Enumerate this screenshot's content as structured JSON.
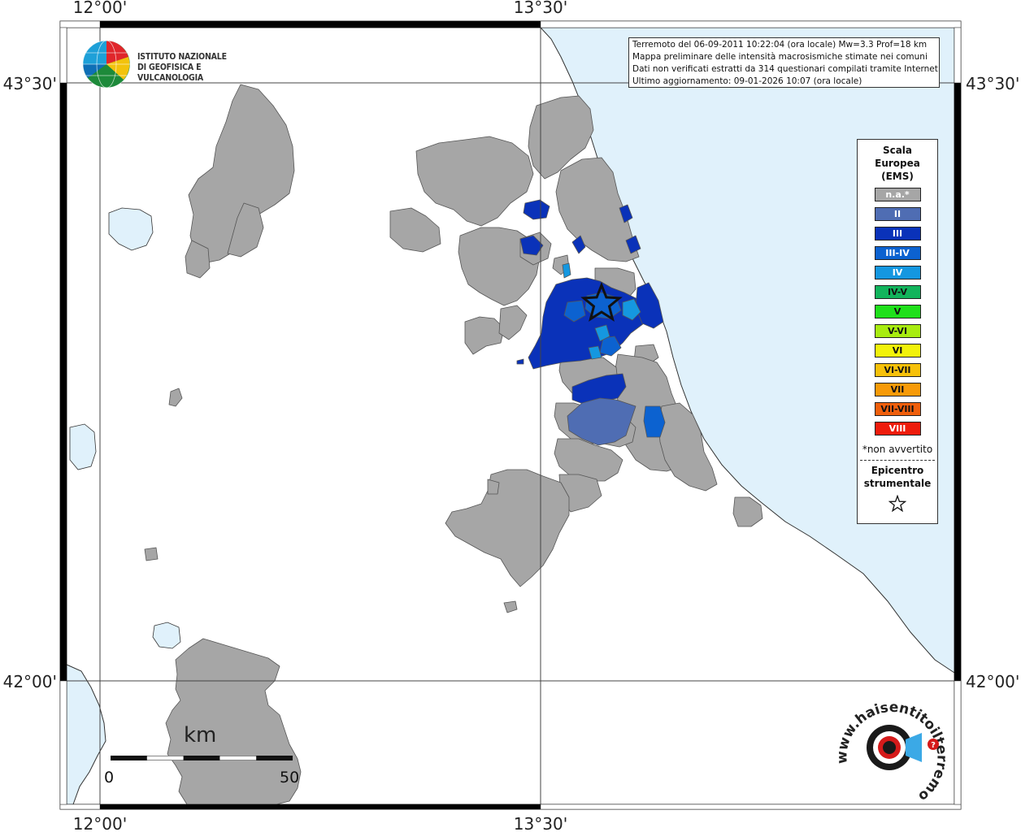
{
  "map": {
    "coord_labels": {
      "lon_left_top": "12°00'",
      "lon_right_top": "13°30'",
      "lon_left_bottom": "12°00'",
      "lon_right_bottom": "13°30'",
      "lat_upper_left": "43°30'",
      "lat_upper_right": "43°30'",
      "lat_lower_left": "42°00'",
      "lat_lower_right": "42°00'"
    },
    "colors": {
      "land": "#ffffff",
      "sea": "#e0f1fb",
      "not_available": "#a6a6a6",
      "epicenter_outline": "#111111"
    }
  },
  "logo": {
    "line1": "ISTITUTO NAZIONALE",
    "line2": "DI GEOFISICA E VULCANOLOGIA"
  },
  "info": {
    "line1": "Terremoto del 06-09-2011 10:22:04 (ora locale) Mw=3.3 Prof=18 km",
    "line2": "Mappa preliminare delle intensità macrosismiche stimate nei comuni",
    "line3": "Dati non verificati estratti da 314 questionari compilati tramite Internet.",
    "line4": "Ultimo aggiornamento: 09-01-2026 10:07 (ora locale)"
  },
  "legend": {
    "title_line1": "Scala",
    "title_line2": "Europea",
    "title_line3": "(EMS)",
    "items": [
      {
        "label": "n.a.*",
        "color": "#a6a6a6",
        "text_color": "#ffffff"
      },
      {
        "label": "II",
        "color": "#4f6db3",
        "text_color": "#ffffff"
      },
      {
        "label": "III",
        "color": "#0a32b9",
        "text_color": "#ffffff"
      },
      {
        "label": "III-IV",
        "color": "#0c62d0",
        "text_color": "#ffffff"
      },
      {
        "label": "IV",
        "color": "#1597e0",
        "text_color": "#ffffff"
      },
      {
        "label": "IV-V",
        "color": "#12b45c",
        "text_color": "#111111"
      },
      {
        "label": "V",
        "color": "#1fe01b",
        "text_color": "#111111"
      },
      {
        "label": "V-VI",
        "color": "#a8ec10",
        "text_color": "#111111"
      },
      {
        "label": "VI",
        "color": "#f2f20a",
        "text_color": "#111111"
      },
      {
        "label": "VI-VII",
        "color": "#f7c10a",
        "text_color": "#111111"
      },
      {
        "label": "VII",
        "color": "#f79a08",
        "text_color": "#111111"
      },
      {
        "label": "VII-VIII",
        "color": "#f05f0c",
        "text_color": "#111111"
      },
      {
        "label": "VIII",
        "color": "#ee1c0c",
        "text_color": "#ffffff"
      }
    ],
    "note": "*non avvertito",
    "epicenter_line1": "Epicentro",
    "epicenter_line2": "strumentale"
  },
  "scale": {
    "unit": "km",
    "min": "0",
    "max": "50"
  },
  "badge": {
    "text": "www.haisentitoilterremoto.it"
  }
}
